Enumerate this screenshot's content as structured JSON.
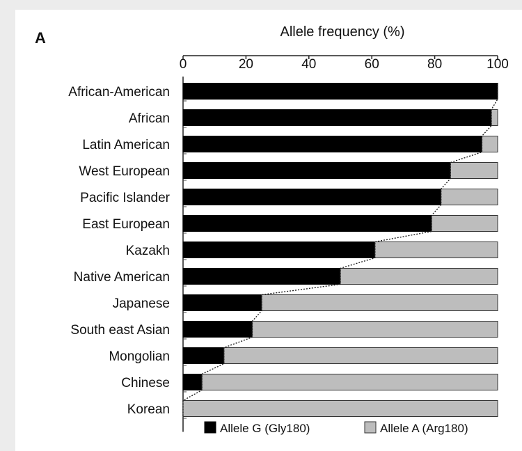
{
  "panel_label": "A",
  "chart_data": {
    "type": "bar",
    "stacked": true,
    "orientation": "horizontal",
    "title": "Allele frequency (%)",
    "x_axis_position": "top",
    "xlim": [
      0,
      100
    ],
    "xticks": [
      0,
      20,
      40,
      60,
      80,
      100
    ],
    "xtick_labels": [
      "0",
      "20",
      "40",
      "60",
      "80",
      "100"
    ],
    "categories": [
      "African-American",
      "African",
      "Latin American",
      "West European",
      "Pacific Islander",
      "East European",
      "Kazakh",
      "Native American",
      "Japanese",
      "South east Asian",
      "Mongolian",
      "Chinese",
      "Korean"
    ],
    "series": [
      {
        "name": "Allele G (Gly180)",
        "color": "#000000",
        "values": [
          100,
          98,
          95,
          85,
          82,
          79,
          61,
          50,
          25,
          22,
          13,
          6,
          0
        ]
      },
      {
        "name": "Allele A (Arg180)",
        "color": "#bdbdbd",
        "values": [
          0,
          2,
          5,
          15,
          18,
          21,
          39,
          50,
          75,
          78,
          87,
          94,
          100
        ]
      }
    ],
    "connector_line": "dotted",
    "legend_position": "bottom",
    "grid": false
  }
}
